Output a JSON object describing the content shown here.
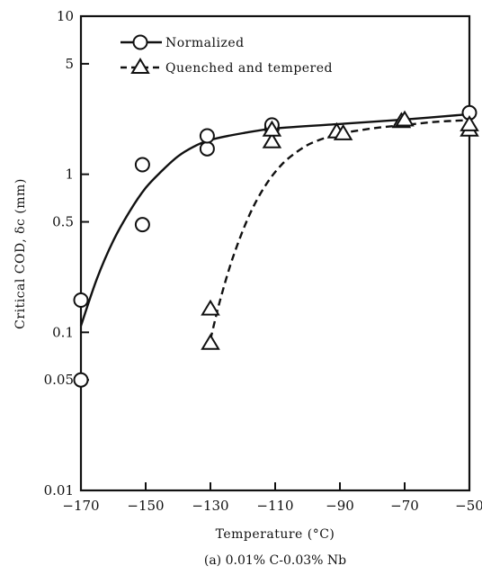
{
  "chart_data": {
    "type": "scatter",
    "title": "",
    "caption": "(a) 0.01% C-0.03% Nb",
    "xlabel": "Temperature (°C)",
    "ylabel": "Critical COD, δc (mm)",
    "xlim": [
      -170,
      -50
    ],
    "ylim": [
      0.01,
      10
    ],
    "yscale": "log",
    "grid": false,
    "legend_position": "top-left",
    "x_ticks": [
      -170,
      -150,
      -130,
      -110,
      -90,
      -70,
      -50
    ],
    "x_tick_labels": [
      "−170",
      "−150",
      "−130",
      "−110",
      "−90",
      "−70",
      "−50"
    ],
    "y_ticks": [
      0.01,
      0.05,
      0.1,
      0.5,
      1,
      5,
      10
    ],
    "y_tick_labels": [
      "0.01",
      "0.05",
      "0.1",
      "0.5",
      "1",
      "5",
      "10"
    ],
    "series": [
      {
        "name": "Normalized",
        "marker": "circle",
        "line_style": "solid",
        "points": [
          {
            "x": -170,
            "y": 0.05
          },
          {
            "x": -170,
            "y": 0.16
          },
          {
            "x": -151,
            "y": 0.48
          },
          {
            "x": -151,
            "y": 1.15
          },
          {
            "x": -131,
            "y": 1.45
          },
          {
            "x": -131,
            "y": 1.75
          },
          {
            "x": -111,
            "y": 1.95
          },
          {
            "x": -111,
            "y": 2.05
          },
          {
            "x": -50,
            "y": 2.45
          }
        ],
        "curve": [
          {
            "x": -170,
            "y": 0.11
          },
          {
            "x": -165,
            "y": 0.22
          },
          {
            "x": -160,
            "y": 0.38
          },
          {
            "x": -155,
            "y": 0.58
          },
          {
            "x": -150,
            "y": 0.82
          },
          {
            "x": -145,
            "y": 1.05
          },
          {
            "x": -140,
            "y": 1.3
          },
          {
            "x": -135,
            "y": 1.5
          },
          {
            "x": -130,
            "y": 1.65
          },
          {
            "x": -120,
            "y": 1.82
          },
          {
            "x": -110,
            "y": 1.95
          },
          {
            "x": -90,
            "y": 2.08
          },
          {
            "x": -70,
            "y": 2.22
          },
          {
            "x": -50,
            "y": 2.4
          }
        ]
      },
      {
        "name": "Quenched and tempered",
        "marker": "triangle",
        "line_style": "dashed",
        "points": [
          {
            "x": -130,
            "y": 0.085
          },
          {
            "x": -130,
            "y": 0.14
          },
          {
            "x": -111,
            "y": 1.6
          },
          {
            "x": -111,
            "y": 1.9
          },
          {
            "x": -91,
            "y": 1.85
          },
          {
            "x": -89,
            "y": 1.8
          },
          {
            "x": -71,
            "y": 2.15
          },
          {
            "x": -70,
            "y": 2.2
          },
          {
            "x": -50,
            "y": 1.9
          },
          {
            "x": -50,
            "y": 2.05
          }
        ],
        "curve": [
          {
            "x": -130,
            "y": 0.09
          },
          {
            "x": -127,
            "y": 0.16
          },
          {
            "x": -123,
            "y": 0.3
          },
          {
            "x": -118,
            "y": 0.55
          },
          {
            "x": -113,
            "y": 0.85
          },
          {
            "x": -108,
            "y": 1.15
          },
          {
            "x": -103,
            "y": 1.4
          },
          {
            "x": -98,
            "y": 1.6
          },
          {
            "x": -90,
            "y": 1.8
          },
          {
            "x": -80,
            "y": 1.95
          },
          {
            "x": -70,
            "y": 2.05
          },
          {
            "x": -60,
            "y": 2.15
          },
          {
            "x": -50,
            "y": 2.2
          }
        ]
      }
    ]
  }
}
